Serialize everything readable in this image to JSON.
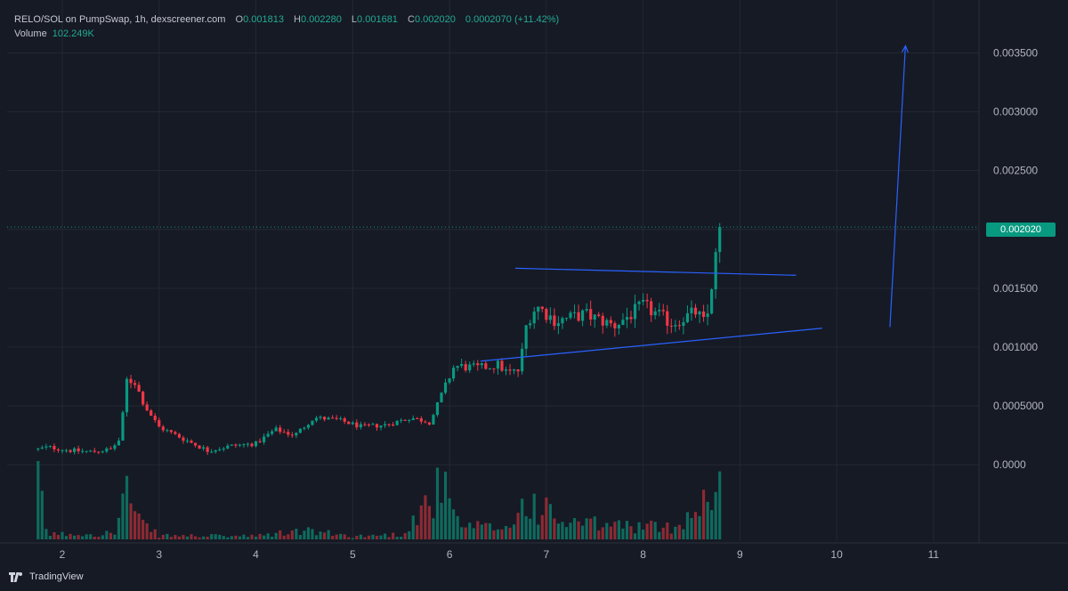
{
  "header": {
    "symbol": "RELO/SOL on PumpSwap, 1h, dexscreener.com",
    "o_label": "O",
    "o": "0.001813",
    "h_label": "H",
    "h": "0.002280",
    "l_label": "L",
    "l": "0.001681",
    "c_label": "C",
    "c": "0.002020",
    "change": "0.0002070 (+11.42%)",
    "volume_label": "Volume",
    "volume": "102.249K"
  },
  "last_price": "0.002020",
  "branding": "TradingView",
  "colors": {
    "background": "#161a25",
    "grid": "#242833",
    "up": "#089981",
    "down": "#f23645",
    "up_volume": "#0e6b5e",
    "down_volume": "#8c2a33",
    "trendline": "#2962ff",
    "text": "#b2b5be"
  },
  "chart_data": {
    "type": "candlestick",
    "title": "RELO/SOL on PumpSwap, 1h, dexscreener.com",
    "x_ticks": [
      "2",
      "3",
      "4",
      "5",
      "6",
      "7",
      "8",
      "9",
      "10",
      "11"
    ],
    "y_ticks": [
      "0.0000",
      "0.0005000",
      "0.001000",
      "0.001500",
      "0.002000",
      "0.002500",
      "0.003000",
      "0.003500"
    ],
    "ylim": [
      -0.00065,
      0.00395
    ],
    "xlim": [
      1.43,
      11.47
    ],
    "last_close": 0.00202,
    "anchors": [
      {
        "t": 1.75,
        "p": 0.00013
      },
      {
        "t": 1.85,
        "p": 0.00015
      },
      {
        "t": 2.1,
        "p": 0.00012
      },
      {
        "t": 2.3,
        "p": 0.00011
      },
      {
        "t": 2.5,
        "p": 0.00013
      },
      {
        "t": 2.6,
        "p": 0.00022
      },
      {
        "t": 2.66,
        "p": 0.00072
      },
      {
        "t": 2.75,
        "p": 0.0007
      },
      {
        "t": 2.85,
        "p": 0.0005
      },
      {
        "t": 3.0,
        "p": 0.00032
      },
      {
        "t": 3.3,
        "p": 0.0002
      },
      {
        "t": 3.5,
        "p": 0.00012
      },
      {
        "t": 3.75,
        "p": 0.00016
      },
      {
        "t": 4.0,
        "p": 0.00018
      },
      {
        "t": 4.2,
        "p": 0.0003
      },
      {
        "t": 4.4,
        "p": 0.00025
      },
      {
        "t": 4.6,
        "p": 0.0004
      },
      {
        "t": 4.85,
        "p": 0.00038
      },
      {
        "t": 5.1,
        "p": 0.00032
      },
      {
        "t": 5.35,
        "p": 0.00034
      },
      {
        "t": 5.6,
        "p": 0.0004
      },
      {
        "t": 5.8,
        "p": 0.00036
      },
      {
        "t": 5.92,
        "p": 0.0006
      },
      {
        "t": 6.05,
        "p": 0.00084
      },
      {
        "t": 6.3,
        "p": 0.00082
      },
      {
        "t": 6.5,
        "p": 0.00085
      },
      {
        "t": 6.6,
        "p": 0.00078
      },
      {
        "t": 6.72,
        "p": 0.0008
      },
      {
        "t": 6.8,
        "p": 0.00122
      },
      {
        "t": 6.9,
        "p": 0.00135
      },
      {
        "t": 7.1,
        "p": 0.00122
      },
      {
        "t": 7.4,
        "p": 0.00128
      },
      {
        "t": 7.7,
        "p": 0.00118
      },
      {
        "t": 8.0,
        "p": 0.00135
      },
      {
        "t": 8.3,
        "p": 0.0012
      },
      {
        "t": 8.55,
        "p": 0.0013
      },
      {
        "t": 8.65,
        "p": 0.00118
      },
      {
        "t": 8.72,
        "p": 0.0016
      },
      {
        "t": 8.8,
        "p": 0.00202
      }
    ],
    "volume_anchors": [
      {
        "t": 1.75,
        "v": 1.0
      },
      {
        "t": 1.8,
        "v": 0.45
      },
      {
        "t": 1.85,
        "v": 0.08
      },
      {
        "t": 2.55,
        "v": 0.1
      },
      {
        "t": 2.66,
        "v": 0.88
      },
      {
        "t": 2.75,
        "v": 0.32
      },
      {
        "t": 3.0,
        "v": 0.06
      },
      {
        "t": 4.0,
        "v": 0.05
      },
      {
        "t": 4.5,
        "v": 0.14
      },
      {
        "t": 5.0,
        "v": 0.05
      },
      {
        "t": 5.5,
        "v": 0.08
      },
      {
        "t": 5.92,
        "v": 0.85
      },
      {
        "t": 6.1,
        "v": 0.2
      },
      {
        "t": 6.6,
        "v": 0.18
      },
      {
        "t": 6.8,
        "v": 0.62
      },
      {
        "t": 7.2,
        "v": 0.25
      },
      {
        "t": 7.8,
        "v": 0.22
      },
      {
        "t": 8.3,
        "v": 0.18
      },
      {
        "t": 8.6,
        "v": 0.55
      },
      {
        "t": 8.8,
        "v": 1.0
      }
    ],
    "trendlines": [
      {
        "t1": 6.68,
        "p1": 0.00167,
        "t2": 9.58,
        "p2": 0.00161
      },
      {
        "t1": 6.32,
        "p1": 0.00088,
        "t2": 9.85,
        "p2": 0.00116
      },
      {
        "t1": 10.55,
        "p1": 0.00117,
        "t2": 10.71,
        "p2": 0.00356,
        "arrow": true
      }
    ]
  }
}
